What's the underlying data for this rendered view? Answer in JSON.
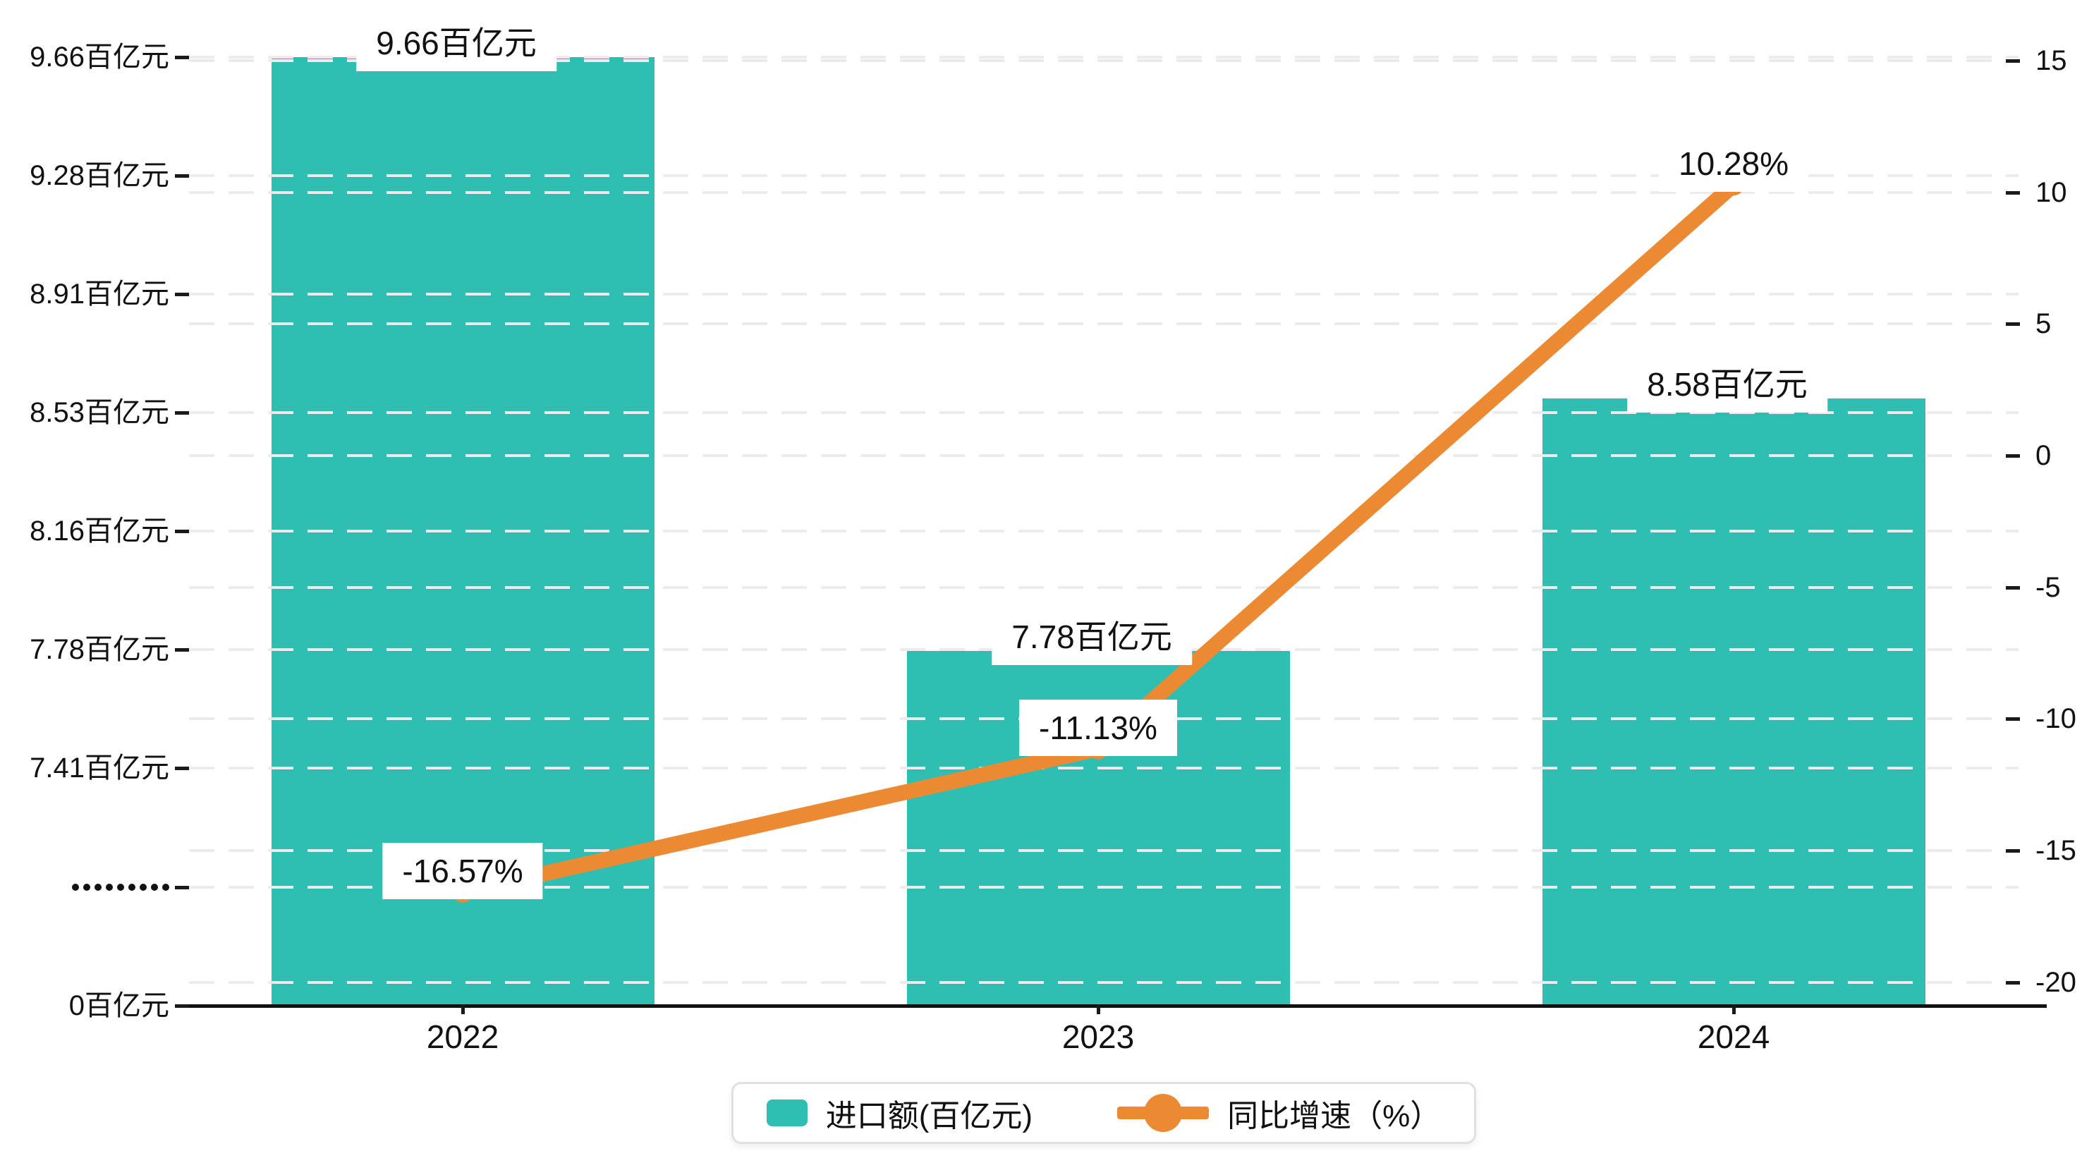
{
  "chart_data": {
    "type": "bar+line",
    "categories": [
      "2022",
      "2023",
      "2024"
    ],
    "series": [
      {
        "name": "进口额(百亿元)",
        "type": "bar",
        "unit": "百亿元",
        "color": "#2fbfb2",
        "values": [
          9.66,
          7.78,
          8.58
        ],
        "data_labels": [
          "9.66百亿元",
          "7.78百亿元",
          "8.58百亿元"
        ]
      },
      {
        "name": "同比增速（%）",
        "type": "line",
        "unit": "%",
        "color": "#ec8a33",
        "values": [
          -16.57,
          -11.13,
          10.28
        ],
        "data_labels": [
          "-16.57%",
          "-11.13%",
          "10.28%"
        ]
      }
    ],
    "left_axis": {
      "tick_labels": [
        "9.66百亿元",
        "9.28百亿元",
        "8.91百亿元",
        "8.53百亿元",
        "8.16百亿元",
        "7.78百亿元",
        "7.41百亿元",
        "·········",
        "0百亿元"
      ],
      "tick_values": [
        9.66,
        9.28,
        8.91,
        8.53,
        8.16,
        7.78,
        7.41,
        null,
        0
      ],
      "break_marker_index": 7,
      "unit": "百亿元"
    },
    "right_axis": {
      "tick_labels": [
        "15",
        "10",
        "5",
        "0",
        "-5",
        "-10",
        "-15",
        "-20"
      ],
      "tick_values": [
        15,
        10,
        5,
        0,
        -5,
        -10,
        -15,
        -20
      ],
      "unit": "%"
    },
    "legend": {
      "items": [
        {
          "label": "进口额(百亿元)",
          "marker": "bar"
        },
        {
          "label": "同比增速（%）",
          "marker": "line"
        }
      ]
    },
    "grid": "dashed",
    "legend_position": "bottom-center",
    "colors": {
      "bar": "#2fbfb2",
      "line": "#ec8a33",
      "grid": "#ececec",
      "axis": "#111111",
      "text": "#111111",
      "legend_border": "#e0e0e0",
      "label_background": "#ffffff"
    }
  }
}
